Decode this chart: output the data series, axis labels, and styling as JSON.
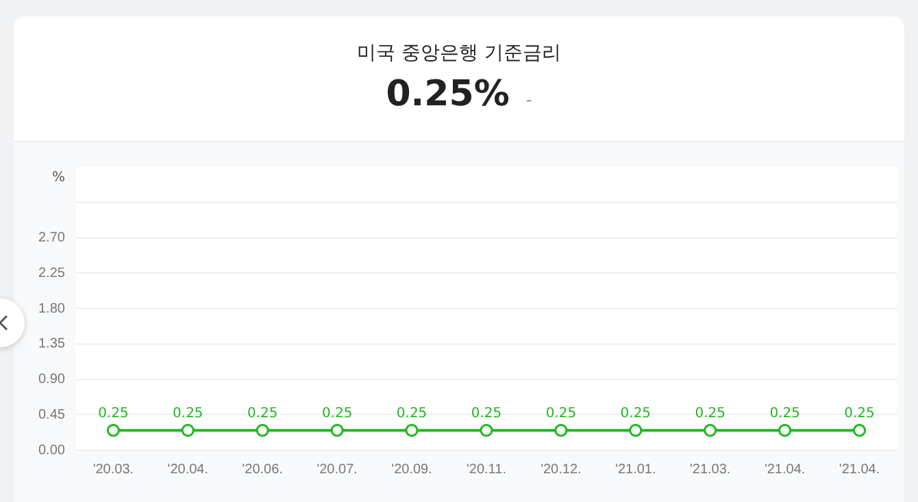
{
  "chart_data": {
    "type": "line",
    "title": "미국 중앙은행 기준금리",
    "subtitle": "0.25%",
    "annotations": [
      "-"
    ],
    "ylabel": "%",
    "categories": [
      "'20.03.",
      "'20.04.",
      "'20.06.",
      "'20.07.",
      "'20.09.",
      "'20.11.",
      "'20.12.",
      "'21.01.",
      "'21.03.",
      "'21.04.",
      "'21.04."
    ],
    "series": [
      {
        "color": "#22b722",
        "values": [
          0.25,
          0.25,
          0.25,
          0.25,
          0.25,
          0.25,
          0.25,
          0.25,
          0.25,
          0.25,
          0.25
        ]
      }
    ],
    "ylim": [
      0,
      3.6
    ],
    "yticks": [
      {
        "value": 0,
        "label": "0.00"
      },
      {
        "value": 0.45,
        "label": "0.45"
      },
      {
        "value": 0.9,
        "label": "0.90"
      },
      {
        "value": 1.35,
        "label": "1.35"
      },
      {
        "value": 1.8,
        "label": "1.80"
      },
      {
        "value": 2.25,
        "label": "2.25"
      },
      {
        "value": 2.7,
        "label": "2.70"
      },
      {
        "value": 3.15,
        "label": null
      }
    ],
    "grid": "y",
    "legend": false,
    "marker": "circle",
    "line_style": "solid",
    "data_labels": true
  }
}
